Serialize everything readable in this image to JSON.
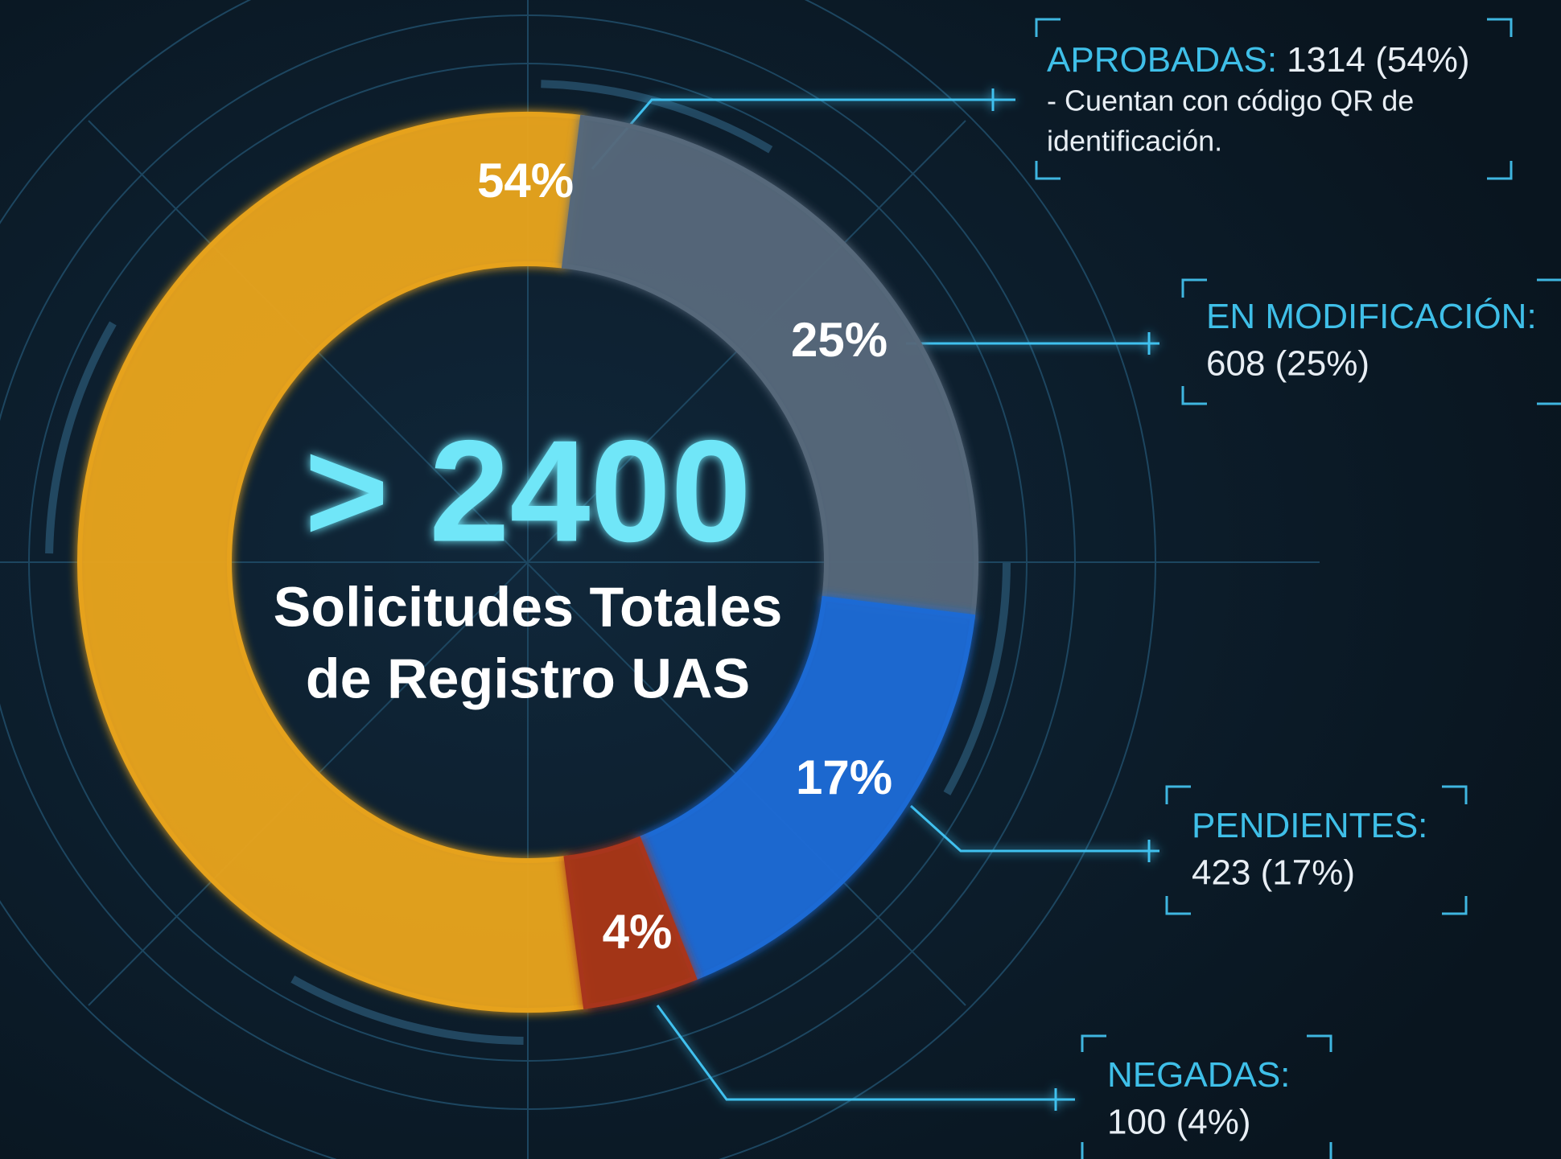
{
  "chart_data": {
    "type": "donut",
    "center_value": "> 2400",
    "center_text": [
      "Solicitudes Totales",
      "de Registro UAS"
    ],
    "categories": [
      "APROBADAS:",
      "EN MODIFICACIÓN:",
      "PENDIENTES:",
      "NEGADAS:"
    ],
    "legend_values": [
      "1314 (54%)",
      "608 (25%)",
      "423 (17%)",
      "100 (4%)"
    ],
    "annotations": [
      "- Cuentan con código QR de",
      "identificación."
    ],
    "values": [
      54,
      25,
      17,
      4
    ],
    "value_labels": [
      "54%",
      "25%",
      "17%",
      "4%"
    ],
    "colors": [
      "#e6a21f",
      "#56687a",
      "#1e6ad4",
      "#a8361a"
    ]
  }
}
